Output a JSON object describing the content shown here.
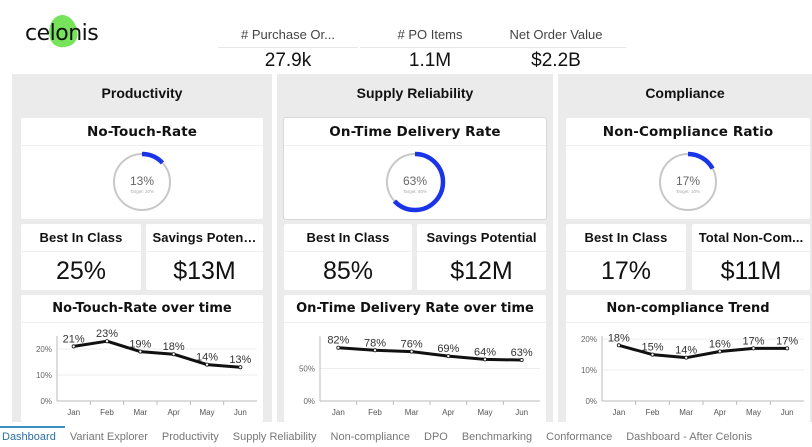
{
  "header": {
    "logo_text": "celonis",
    "kpis": [
      {
        "label": "# Purchase Or...",
        "value": "27.9k"
      },
      {
        "label": "# PO Items",
        "value": "1.1M"
      },
      {
        "label": "Net Order Value",
        "value": "$2.2B"
      }
    ]
  },
  "colors": {
    "accent": "#1a35e8",
    "gauge_track": "#c8c8c8",
    "line": "#111111",
    "tab_active": "#2b6f9e"
  },
  "sections": [
    {
      "title": "Productivity",
      "gauge": {
        "title": "No-Touch-Rate",
        "value_label": "13%",
        "value": 0.13,
        "target_label": "Target: 20%"
      },
      "tiles": [
        {
          "label": "Best In Class",
          "value": "25%"
        },
        {
          "label": "Savings Poten…",
          "value": "$13M"
        }
      ],
      "chart_title": "No-Touch-Rate over time"
    },
    {
      "title": "Supply Reliability",
      "gauge": {
        "title": "On-Time Delivery Rate",
        "value_label": "63%",
        "value": 0.63,
        "target_label": "Target: 80%"
      },
      "tiles": [
        {
          "label": "Best In Class",
          "value": "85%"
        },
        {
          "label": "Savings Potential",
          "value": "$12M"
        }
      ],
      "chart_title": "On-Time Delivery Rate over time"
    },
    {
      "title": "Compliance",
      "gauge": {
        "title": "Non-Compliance Ratio",
        "value_label": "17%",
        "value": 0.17,
        "target_label": "Target: 10%"
      },
      "tiles": [
        {
          "label": "Best In Class",
          "value": "17%"
        },
        {
          "label": "Total Non-Com...",
          "value": "$11M"
        }
      ],
      "chart_title": "Non-compliance Trend"
    }
  ],
  "chart_data": [
    {
      "type": "line",
      "title": "No-Touch-Rate over time",
      "categories": [
        "Jan",
        "Feb",
        "Mar",
        "Apr",
        "May",
        "Jun"
      ],
      "values": [
        21,
        23,
        19,
        18,
        14,
        13
      ],
      "data_labels": [
        "21%",
        "23%",
        "19%",
        "18%",
        "14%",
        "13%"
      ],
      "yticks": [
        0,
        10,
        20
      ],
      "ytick_labels": [
        "0%",
        "10%",
        "20%"
      ],
      "ylim": [
        0,
        25
      ],
      "grid": true
    },
    {
      "type": "line",
      "title": "On-Time Delivery Rate over time",
      "categories": [
        "Jan",
        "Feb",
        "Mar",
        "Apr",
        "May",
        "Jun"
      ],
      "values": [
        82,
        78,
        76,
        69,
        64,
        63
      ],
      "data_labels": [
        "82%",
        "78%",
        "76%",
        "69%",
        "64%",
        "63%"
      ],
      "yticks": [
        0,
        50
      ],
      "ytick_labels": [
        "0%",
        "50%"
      ],
      "ylim": [
        0,
        100
      ],
      "grid": true
    },
    {
      "type": "line",
      "title": "Non-compliance Trend",
      "categories": [
        "Jan",
        "Feb",
        "Mar",
        "Apr",
        "May",
        "Jun"
      ],
      "values": [
        18,
        15,
        14,
        16,
        17,
        17
      ],
      "data_labels": [
        "18%",
        "15%",
        "14%",
        "16%",
        "17%",
        "17%"
      ],
      "yticks": [
        0,
        10,
        20
      ],
      "ytick_labels": [
        "0%",
        "10%",
        "20%"
      ],
      "ylim": [
        0,
        21
      ],
      "grid": true
    }
  ],
  "tabs": [
    {
      "label": "Dashboard",
      "active": true
    },
    {
      "label": "Variant Explorer"
    },
    {
      "label": "Productivity"
    },
    {
      "label": "Supply Reliability"
    },
    {
      "label": "Non-compliance"
    },
    {
      "label": "DPO"
    },
    {
      "label": "Benchmarking"
    },
    {
      "label": "Conformance"
    },
    {
      "label": "Dashboard - After Celonis"
    }
  ]
}
